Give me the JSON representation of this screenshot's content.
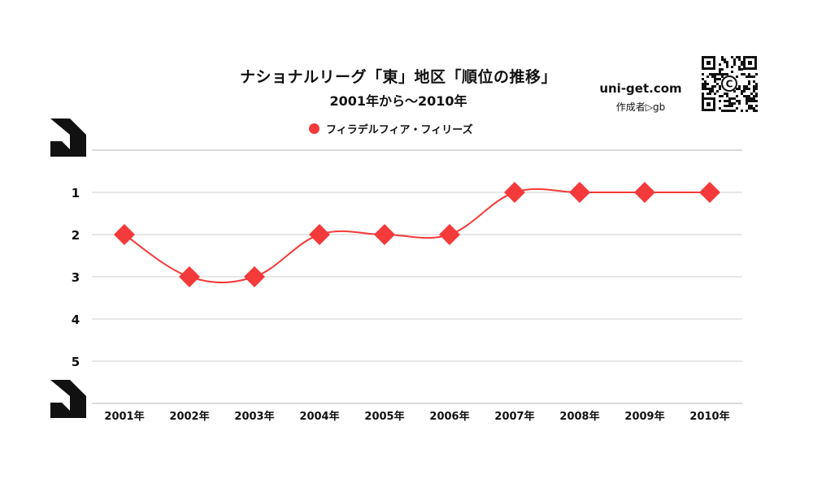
{
  "header": {
    "title": "ナショナルリーグ「東」地区「順位の推移」",
    "subtitle": "2001年から～2010年"
  },
  "brand": {
    "site": "uni-get.com",
    "author": "作成者▷gb",
    "qr_badge": "C"
  },
  "colors": {
    "series": "#f43a3a",
    "grid": "#cfcfcf",
    "axis_text": "#111111"
  },
  "chart_data": {
    "type": "line",
    "title": "ナショナルリーグ「東」地区「順位の推移」",
    "subtitle": "2001年から～2010年",
    "categories": [
      "2001年",
      "2002年",
      "2003年",
      "2004年",
      "2005年",
      "2006年",
      "2007年",
      "2008年",
      "2009年",
      "2010年"
    ],
    "series": [
      {
        "name": "フィラデルフィア・フィリーズ",
        "values": [
          2,
          3,
          3,
          2,
          2,
          2,
          1,
          1,
          1,
          1
        ],
        "marker": "diamond",
        "smooth": true
      }
    ],
    "y_ticks": [
      "1",
      "2",
      "3",
      "4",
      "5"
    ],
    "ylim": [
      0,
      6
    ],
    "y_reversed": true,
    "xlabel": "",
    "ylabel": "",
    "grid": true,
    "legend_position": "top-center"
  }
}
